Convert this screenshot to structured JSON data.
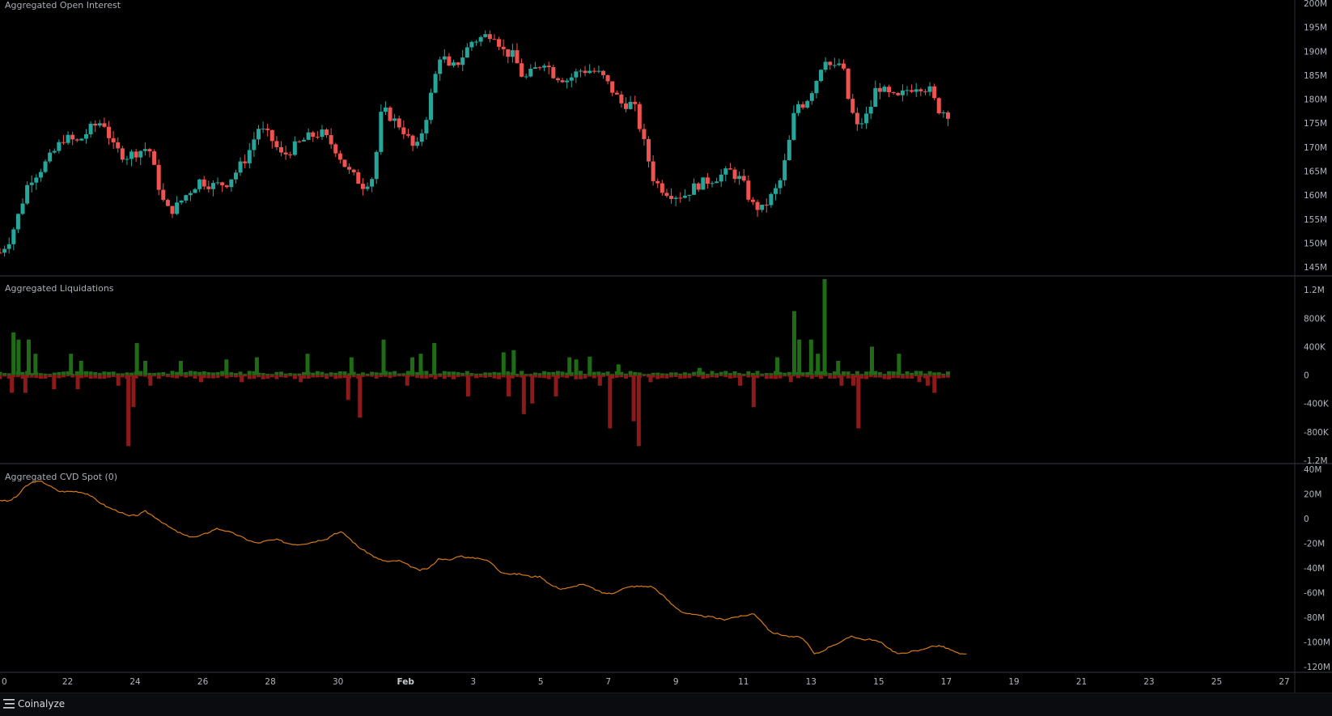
{
  "panes": {
    "open_interest": {
      "title": "Aggregated Open Interest"
    },
    "liquidations": {
      "title": "Aggregated Liquidations"
    },
    "cvd": {
      "title": "Aggregated CVD Spot (0)"
    }
  },
  "footer": {
    "brand": "Coinalyze",
    "logo_icon": "menu-lines-icon"
  },
  "colors": {
    "up": "#26a69a",
    "down": "#ef5350",
    "liq_up": "#1f6b16",
    "liq_down": "#8c1a1a",
    "cvd_line": "#d47a1a",
    "grid_line": "#2a2d35"
  },
  "chart_data": [
    {
      "type": "candlestick",
      "title": "Aggregated Open Interest",
      "ylim": [
        144,
        200
      ],
      "y_ticks": [
        "145M",
        "150M",
        "155M",
        "160M",
        "165M",
        "170M",
        "175M",
        "180M",
        "185M",
        "190M",
        "195M",
        "200M"
      ],
      "y_tick_values": [
        145,
        150,
        155,
        160,
        165,
        170,
        175,
        180,
        185,
        190,
        195,
        200
      ],
      "unit": "M",
      "x_range_days": [
        20,
        27.3
      ],
      "anchors": [
        [
          20.0,
          148
        ],
        [
          20.3,
          151
        ],
        [
          20.55,
          156
        ],
        [
          20.85,
          163
        ],
        [
          21.15,
          165
        ],
        [
          21.5,
          168
        ],
        [
          21.9,
          172
        ],
        [
          22.3,
          171
        ],
        [
          22.7,
          174
        ],
        [
          23.05,
          175.5
        ],
        [
          23.35,
          170
        ],
        [
          23.7,
          168
        ],
        [
          24.05,
          169
        ],
        [
          24.4,
          170
        ],
        [
          24.65,
          163
        ],
        [
          24.9,
          157
        ],
        [
          25.15,
          157
        ],
        [
          25.5,
          160
        ],
        [
          25.9,
          163
        ],
        [
          26.3,
          162
        ],
        [
          26.7,
          162.5
        ],
        [
          27.0,
          165
        ],
        [
          27.3,
          168
        ],
        [
          27.65,
          174
        ],
        [
          28.0,
          172
        ],
        [
          28.35,
          168
        ],
        [
          28.7,
          170
        ],
        [
          29.1,
          172
        ],
        [
          29.5,
          173
        ],
        [
          29.9,
          170
        ],
        [
          30.3,
          165
        ],
        [
          30.75,
          162
        ],
        [
          31.05,
          164
        ],
        [
          31.3,
          178
        ],
        [
          31.6,
          176
        ],
        [
          31.9,
          174
        ],
        [
          32.3,
          169
        ],
        [
          32.6,
          176
        ],
        [
          32.85,
          184
        ],
        [
          33.05,
          190
        ],
        [
          33.3,
          186
        ],
        [
          33.6,
          188
        ],
        [
          33.95,
          192
        ],
        [
          34.3,
          193
        ],
        [
          34.6,
          194
        ],
        [
          34.9,
          190
        ],
        [
          35.2,
          189
        ],
        [
          35.5,
          184
        ],
        [
          35.8,
          186
        ],
        [
          36.1,
          188
        ],
        [
          36.4,
          185
        ],
        [
          36.8,
          184
        ],
        [
          37.15,
          186
        ],
        [
          37.5,
          186
        ],
        [
          37.8,
          185
        ],
        [
          38.1,
          182
        ],
        [
          38.4,
          179
        ],
        [
          38.75,
          179
        ],
        [
          39.05,
          171
        ],
        [
          39.35,
          163
        ],
        [
          39.65,
          161
        ],
        [
          39.95,
          160
        ],
        [
          40.25,
          160
        ],
        [
          40.6,
          162
        ],
        [
          40.95,
          163
        ],
        [
          41.3,
          164
        ],
        [
          41.6,
          165
        ],
        [
          41.95,
          163
        ],
        [
          42.25,
          158
        ],
        [
          42.55,
          157
        ],
        [
          42.85,
          160
        ],
        [
          43.05,
          162
        ],
        [
          43.3,
          169
        ],
        [
          43.55,
          179
        ],
        [
          43.8,
          179
        ],
        [
          44.1,
          183
        ],
        [
          44.4,
          189
        ],
        [
          44.65,
          186
        ],
        [
          44.9,
          188
        ],
        [
          45.1,
          180
        ],
        [
          45.35,
          174
        ],
        [
          45.7,
          177
        ],
        [
          45.95,
          183
        ],
        [
          46.25,
          181
        ],
        [
          46.55,
          180
        ],
        [
          46.85,
          182
        ],
        [
          47.15,
          183
        ],
        [
          47.5,
          182
        ],
        [
          47.75,
          178
        ],
        [
          48.05,
          177
        ]
      ],
      "candle_count": 210
    },
    {
      "type": "bar",
      "title": "Aggregated Liquidations",
      "ylim": [
        -1200000,
        1350000
      ],
      "y_ticks": [
        "-1.2M",
        "-800K",
        "-400K",
        "0",
        "400K",
        "800K",
        "1.2M"
      ],
      "y_tick_values": [
        -1200000,
        -800000,
        -400000,
        0,
        400000,
        800000,
        1200000
      ],
      "long_spikes": [
        [
          20.4,
          600000
        ],
        [
          20.55,
          500000
        ],
        [
          20.85,
          500000
        ],
        [
          21.05,
          300000
        ],
        [
          22.1,
          300000
        ],
        [
          22.4,
          200000
        ],
        [
          24.05,
          450000
        ],
        [
          24.3,
          200000
        ],
        [
          25.35,
          200000
        ],
        [
          26.7,
          220000
        ],
        [
          27.6,
          250000
        ],
        [
          29.1,
          300000
        ],
        [
          30.4,
          250000
        ],
        [
          31.35,
          500000
        ],
        [
          32.2,
          250000
        ],
        [
          32.45,
          300000
        ],
        [
          32.85,
          450000
        ],
        [
          34.9,
          320000
        ],
        [
          35.2,
          350000
        ],
        [
          36.85,
          250000
        ],
        [
          37.05,
          220000
        ],
        [
          37.45,
          260000
        ],
        [
          38.3,
          150000
        ],
        [
          40.7,
          100000
        ],
        [
          43.0,
          250000
        ],
        [
          43.5,
          900000
        ],
        [
          43.65,
          500000
        ],
        [
          44.0,
          500000
        ],
        [
          44.2,
          300000
        ],
        [
          44.4,
          1350000
        ],
        [
          44.8,
          200000
        ],
        [
          45.8,
          400000
        ],
        [
          46.6,
          300000
        ]
      ],
      "short_spikes": [
        [
          20.35,
          -250000
        ],
        [
          20.75,
          -250000
        ],
        [
          21.6,
          -200000
        ],
        [
          22.3,
          -200000
        ],
        [
          23.5,
          -150000
        ],
        [
          23.8,
          -1000000
        ],
        [
          23.95,
          -450000
        ],
        [
          24.45,
          -150000
        ],
        [
          25.95,
          -100000
        ],
        [
          27.15,
          -100000
        ],
        [
          28.9,
          -100000
        ],
        [
          30.3,
          -350000
        ],
        [
          30.65,
          -600000
        ],
        [
          32.05,
          -150000
        ],
        [
          33.85,
          -300000
        ],
        [
          35.05,
          -300000
        ],
        [
          35.5,
          -550000
        ],
        [
          35.75,
          -400000
        ],
        [
          36.45,
          -300000
        ],
        [
          37.75,
          -150000
        ],
        [
          38.05,
          -750000
        ],
        [
          38.75,
          -650000
        ],
        [
          38.9,
          -1000000
        ],
        [
          39.25,
          -100000
        ],
        [
          41.9,
          -150000
        ],
        [
          42.3,
          -450000
        ],
        [
          43.4,
          -100000
        ],
        [
          44.9,
          -150000
        ],
        [
          45.25,
          -150000
        ],
        [
          45.4,
          -750000
        ],
        [
          47.2,
          -100000
        ],
        [
          47.45,
          -150000
        ],
        [
          47.65,
          -250000
        ]
      ],
      "x_range_days": [
        20,
        27.3
      ]
    },
    {
      "type": "line",
      "title": "Aggregated CVD Spot (0)",
      "ylim": [
        -122000000,
        42000000
      ],
      "y_ticks": [
        "-120M",
        "-100M",
        "-80M",
        "-60M",
        "-40M",
        "-20M",
        "0",
        "20M",
        "40M"
      ],
      "y_tick_values": [
        -120000000,
        -100000000,
        -80000000,
        -60000000,
        -40000000,
        -20000000,
        0,
        20000000,
        40000000
      ],
      "anchors": [
        [
          20.0,
          15
        ],
        [
          20.25,
          14
        ],
        [
          20.5,
          18
        ],
        [
          20.75,
          26
        ],
        [
          21.0,
          30
        ],
        [
          21.25,
          30
        ],
        [
          21.5,
          26
        ],
        [
          21.75,
          22
        ],
        [
          22.0,
          22
        ],
        [
          22.3,
          22
        ],
        [
          22.6,
          20
        ],
        [
          22.9,
          14
        ],
        [
          23.2,
          9
        ],
        [
          23.5,
          6
        ],
        [
          23.8,
          2
        ],
        [
          24.1,
          3
        ],
        [
          24.3,
          6
        ],
        [
          24.6,
          1
        ],
        [
          24.9,
          -5
        ],
        [
          25.2,
          -10
        ],
        [
          25.5,
          -14
        ],
        [
          25.8,
          -15
        ],
        [
          26.1,
          -12
        ],
        [
          26.4,
          -8
        ],
        [
          26.7,
          -10
        ],
        [
          27.0,
          -13
        ],
        [
          27.3,
          -17
        ],
        [
          27.6,
          -20
        ],
        [
          27.9,
          -18
        ],
        [
          28.2,
          -17
        ],
        [
          28.5,
          -20
        ],
        [
          28.8,
          -21
        ],
        [
          29.1,
          -20
        ],
        [
          29.4,
          -18
        ],
        [
          29.7,
          -16
        ],
        [
          29.9,
          -12
        ],
        [
          30.1,
          -11
        ],
        [
          30.3,
          -15
        ],
        [
          30.6,
          -23
        ],
        [
          30.9,
          -28
        ],
        [
          31.2,
          -33
        ],
        [
          31.5,
          -35
        ],
        [
          31.8,
          -34
        ],
        [
          32.1,
          -38
        ],
        [
          32.4,
          -42
        ],
        [
          32.7,
          -40
        ],
        [
          33.0,
          -32
        ],
        [
          33.3,
          -34
        ],
        [
          33.6,
          -30
        ],
        [
          33.9,
          -32
        ],
        [
          34.2,
          -32
        ],
        [
          34.5,
          -35
        ],
        [
          34.8,
          -43
        ],
        [
          35.1,
          -45
        ],
        [
          35.4,
          -45
        ],
        [
          35.7,
          -47
        ],
        [
          36.0,
          -47
        ],
        [
          36.3,
          -54
        ],
        [
          36.6,
          -57
        ],
        [
          36.9,
          -56
        ],
        [
          37.2,
          -53
        ],
        [
          37.5,
          -56
        ],
        [
          37.8,
          -60
        ],
        [
          38.1,
          -61
        ],
        [
          38.4,
          -57
        ],
        [
          38.7,
          -55
        ],
        [
          39.0,
          -55
        ],
        [
          39.3,
          -55
        ],
        [
          39.6,
          -62
        ],
        [
          39.9,
          -70
        ],
        [
          40.2,
          -76
        ],
        [
          40.5,
          -78
        ],
        [
          40.8,
          -79
        ],
        [
          41.1,
          -80
        ],
        [
          41.4,
          -82
        ],
        [
          41.7,
          -80
        ],
        [
          42.0,
          -79
        ],
        [
          42.3,
          -77
        ],
        [
          42.5,
          -82
        ],
        [
          42.8,
          -92
        ],
        [
          43.1,
          -94
        ],
        [
          43.4,
          -96
        ],
        [
          43.7,
          -96
        ],
        [
          43.9,
          -102
        ],
        [
          44.1,
          -110
        ],
        [
          44.3,
          -108
        ],
        [
          44.6,
          -103
        ],
        [
          44.9,
          -100
        ],
        [
          45.2,
          -95
        ],
        [
          45.5,
          -98
        ],
        [
          45.8,
          -98
        ],
        [
          46.1,
          -101
        ],
        [
          46.4,
          -107
        ],
        [
          46.6,
          -110
        ],
        [
          46.9,
          -108
        ],
        [
          47.2,
          -107
        ],
        [
          47.5,
          -104
        ],
        [
          47.8,
          -103
        ],
        [
          48.1,
          -106
        ],
        [
          48.4,
          -110
        ],
        [
          48.6,
          -110
        ]
      ],
      "unit": "M",
      "x_range_days": [
        20,
        27.3
      ]
    }
  ],
  "x_axis": {
    "labels": [
      "0",
      "22",
      "24",
      "26",
      "28",
      "30",
      "Feb",
      "3",
      "5",
      "7",
      "9",
      "11",
      "13",
      "15",
      "17",
      "19",
      "21",
      "23",
      "25",
      "27"
    ],
    "label_days": [
      20,
      22,
      24,
      26,
      28,
      30,
      32,
      34,
      36,
      38,
      40,
      42,
      44,
      46,
      48,
      50,
      52,
      54,
      56,
      58
    ],
    "bold_label": "Feb"
  }
}
